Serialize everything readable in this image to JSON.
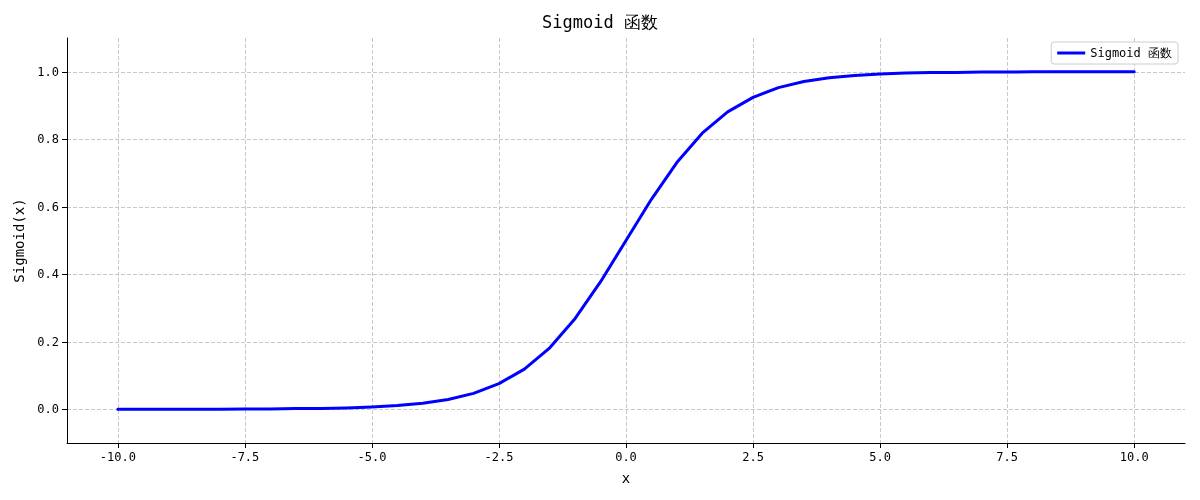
{
  "chart_data": {
    "type": "line",
    "title": "Sigmoid 函数",
    "xlabel": "x",
    "ylabel": "Sigmoid(x)",
    "x": [
      -10,
      -9.5,
      -9,
      -8.5,
      -8,
      -7.5,
      -7,
      -6.5,
      -6,
      -5.5,
      -5,
      -4.5,
      -4,
      -3.5,
      -3,
      -2.5,
      -2,
      -1.5,
      -1,
      -0.5,
      0,
      0.5,
      1,
      1.5,
      2,
      2.5,
      3,
      3.5,
      4,
      4.5,
      5,
      5.5,
      6,
      6.5,
      7,
      7.5,
      8,
      8.5,
      9,
      9.5,
      10
    ],
    "series": [
      {
        "name": "Sigmoid 函数",
        "color": "#0000ff",
        "values": [
          0.0,
          0.0,
          0.0,
          0.0,
          0.0,
          0.001,
          0.001,
          0.002,
          0.002,
          0.004,
          0.007,
          0.011,
          0.018,
          0.029,
          0.047,
          0.076,
          0.119,
          0.182,
          0.269,
          0.378,
          0.5,
          0.622,
          0.731,
          0.818,
          0.881,
          0.924,
          0.953,
          0.971,
          0.982,
          0.989,
          0.993,
          0.996,
          0.998,
          0.998,
          0.999,
          0.999,
          1.0,
          1.0,
          1.0,
          1.0,
          1.0
        ]
      }
    ],
    "xlim": [
      -11,
      11
    ],
    "xticks": [
      {
        "value": -10,
        "label": "-10.0"
      },
      {
        "value": -7.5,
        "label": "-7.5"
      },
      {
        "value": -5,
        "label": "-5.0"
      },
      {
        "value": -2.5,
        "label": "-2.5"
      },
      {
        "value": 0,
        "label": "0.0"
      },
      {
        "value": 2.5,
        "label": "2.5"
      },
      {
        "value": 5,
        "label": "5.0"
      },
      {
        "value": 7.5,
        "label": "7.5"
      },
      {
        "value": 10,
        "label": "10.0"
      }
    ],
    "ylim": [
      -0.1,
      1.1
    ],
    "yticks": [
      {
        "value": 0,
        "label": "0.0"
      },
      {
        "value": 0.2,
        "label": "0.2"
      },
      {
        "value": 0.4,
        "label": "0.4"
      },
      {
        "value": 0.6,
        "label": "0.6"
      },
      {
        "value": 0.8,
        "label": "0.8"
      },
      {
        "value": 1,
        "label": "1.0"
      }
    ],
    "grid": true,
    "legend": "top right",
    "marker": "none",
    "line_style": "solid"
  }
}
